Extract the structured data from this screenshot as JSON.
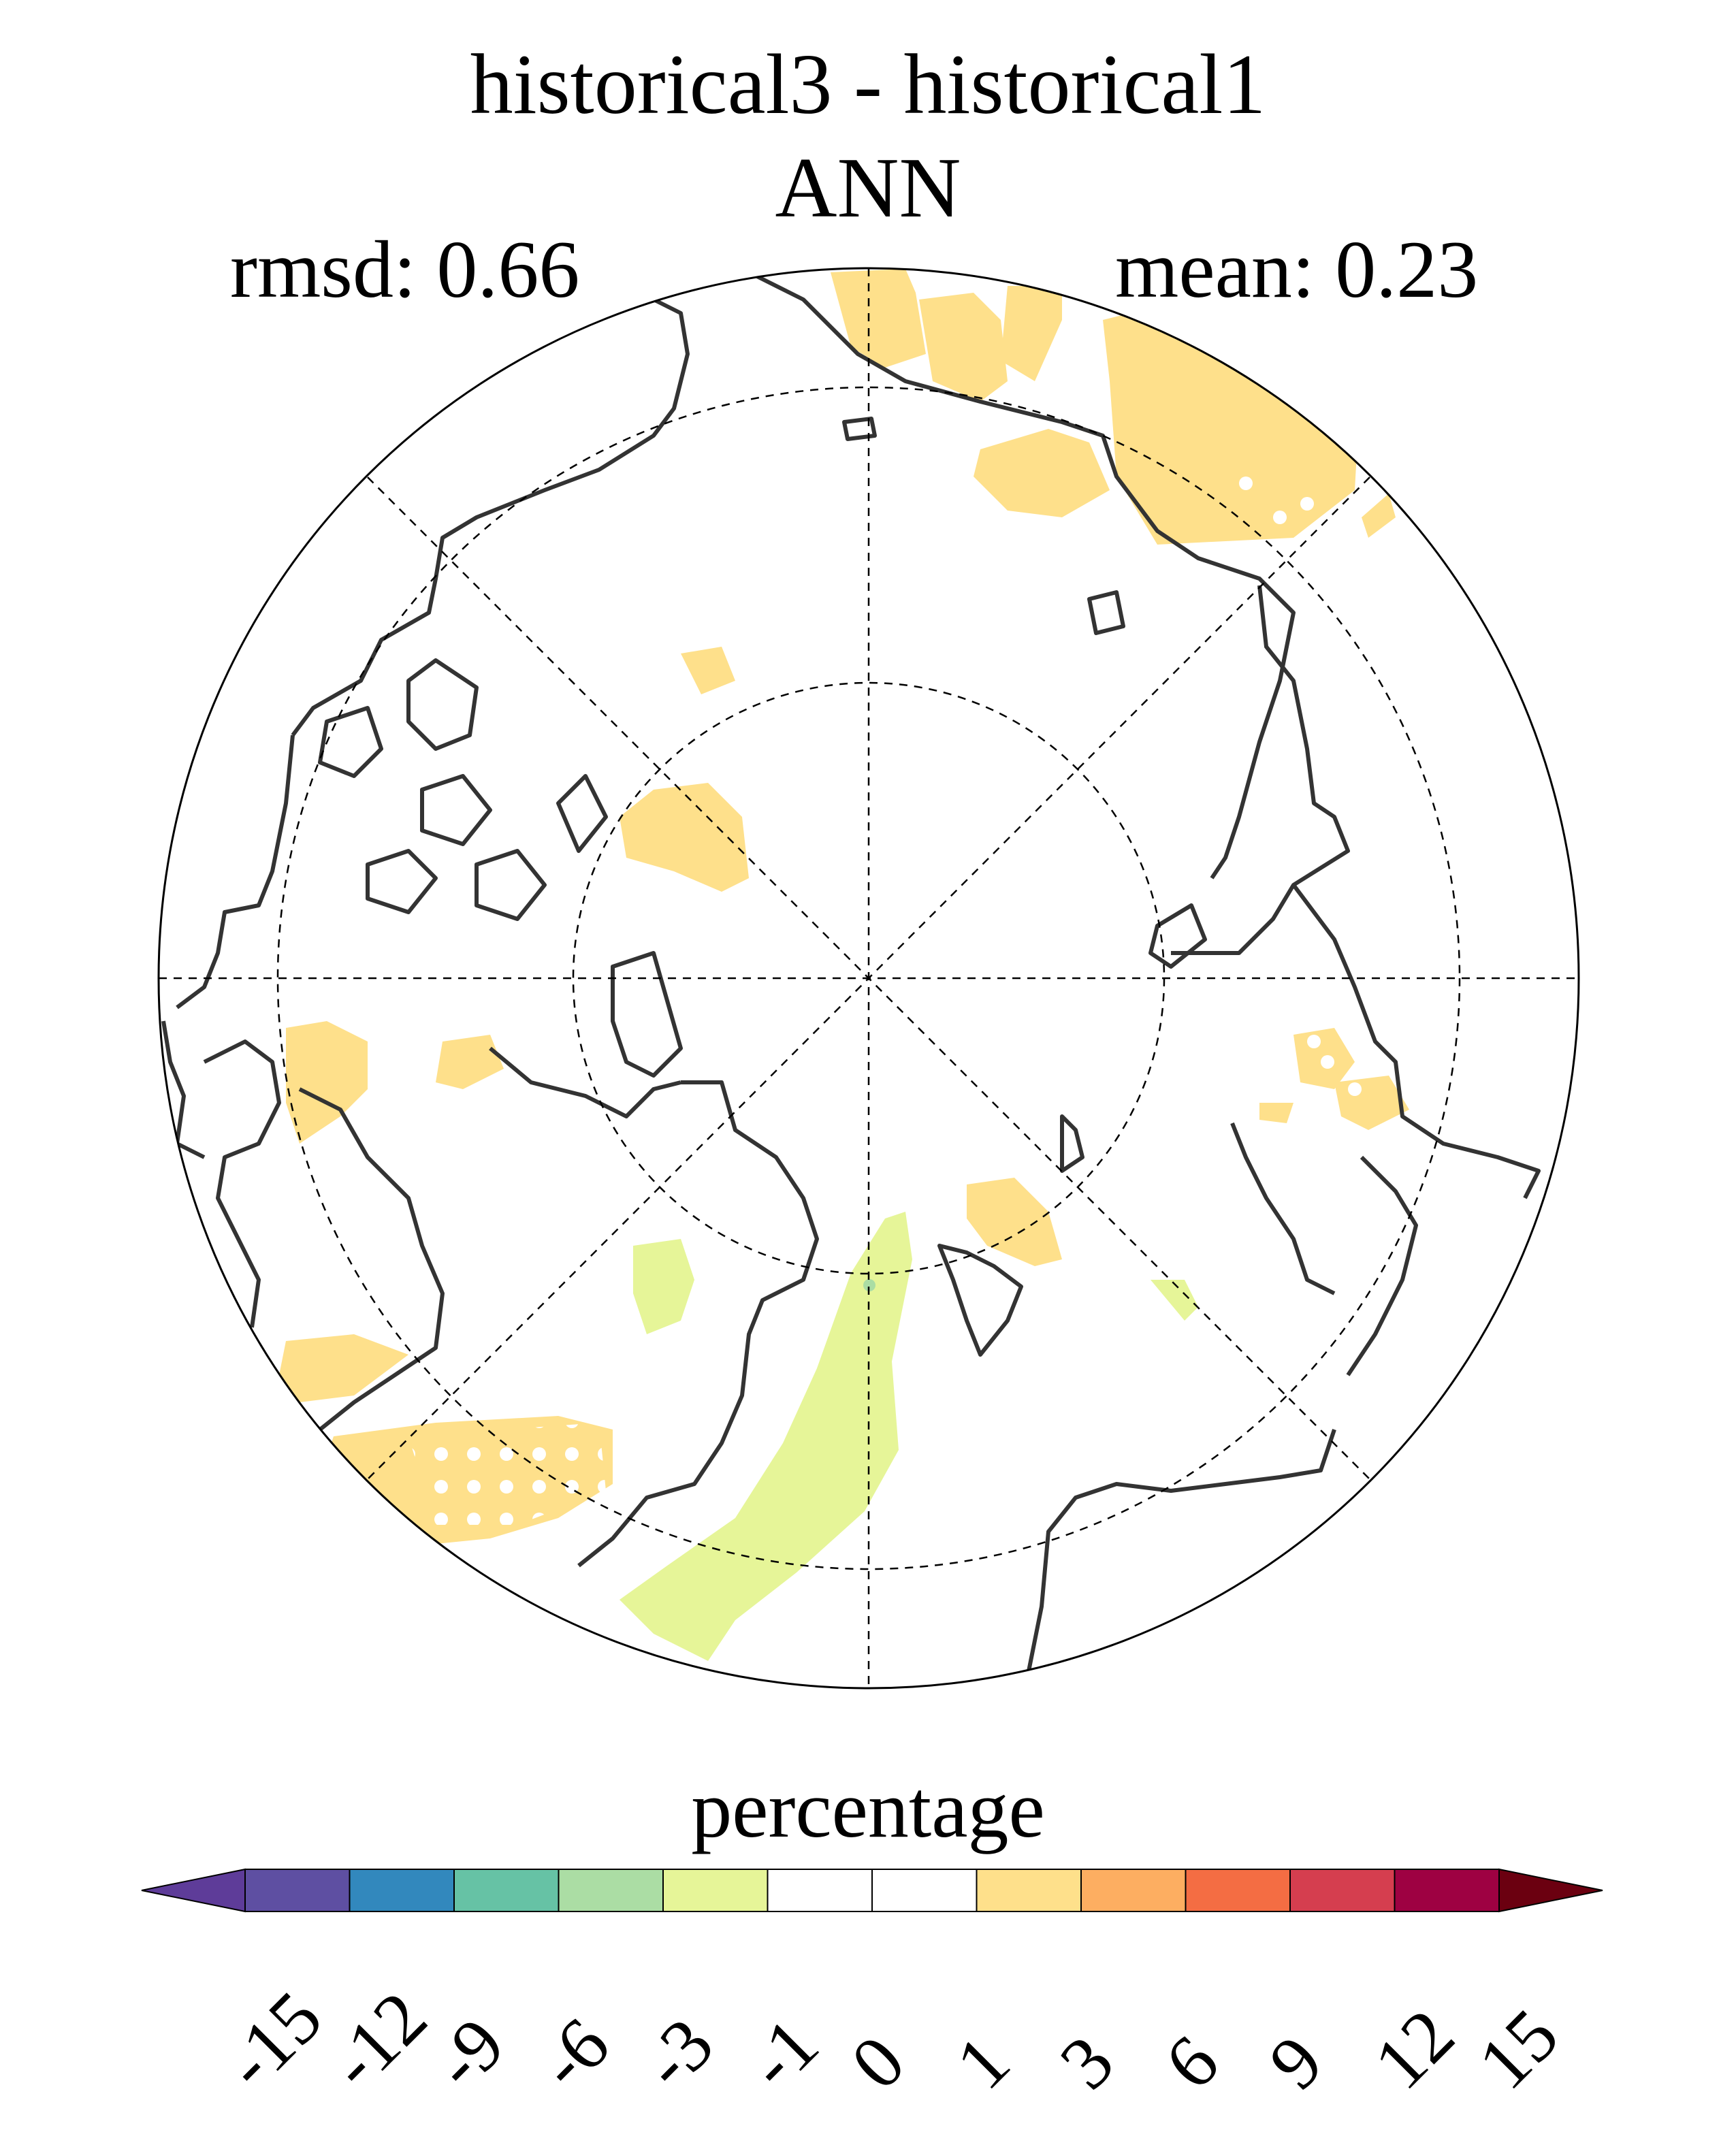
{
  "title": {
    "line1": "historical3 - historical1",
    "line2": "ANN"
  },
  "stats": {
    "rmsd": "rmsd: 0.66",
    "mean": "mean: 0.23"
  },
  "map": {
    "projection": "north polar stereographic",
    "grid": "dashed",
    "stippling": "white dots mark non-significant regions"
  },
  "colorbar": {
    "label": "percentage",
    "levels": [
      "-15",
      "-12",
      "-9",
      "-6",
      "-3",
      "-1",
      "0",
      "1",
      "3",
      "6",
      "9",
      "12",
      "15"
    ],
    "colors": [
      "#5e3c99",
      "#5e4fa2",
      "#3288bd",
      "#66c2a5",
      "#abdda4",
      "#e6f598",
      "#ffffff",
      "#ffffff",
      "#fee08b",
      "#fdae61",
      "#f46d43",
      "#d53e4f",
      "#9e0142",
      "#6b0010"
    ],
    "extend": "both"
  },
  "anomaly_colors": {
    "positive_1_3": "#fee08b",
    "negative_3_1": "#e6f598",
    "negative_6_3": "#abdda4"
  }
}
